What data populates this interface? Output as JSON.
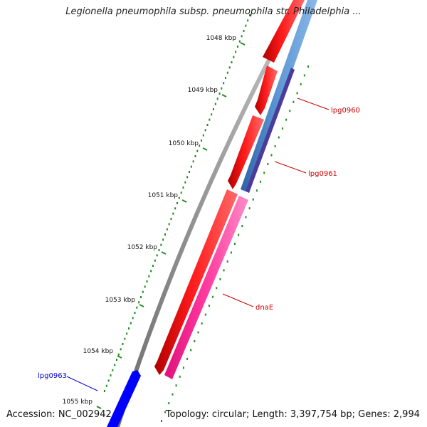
{
  "title": "Legionella pneumophila subsp. pneumophila str. Philadelphia ...",
  "accession": "Accession: NC_002942",
  "summary": "Topology: circular; Length: 3,397,754 bp; Genes: 2,994",
  "colors": {
    "backbone": "#888888",
    "forward_gene": "#ff0000",
    "reverse_gene": "#0000ff",
    "cds_blue": "#4f86c6",
    "cds_purple": "#4b3c9a",
    "cds_pink": "#ff2d96",
    "gc_ticks": "#228b22",
    "label_red": "#cc0000",
    "label_blue": "#0000cc"
  },
  "ruler": {
    "ticks": [
      {
        "label": "1048 kbp"
      },
      {
        "label": "1049 kbp"
      },
      {
        "label": "1050 kbp"
      },
      {
        "label": "1051 kbp"
      },
      {
        "label": "1052 kbp"
      },
      {
        "label": "1053 kbp"
      },
      {
        "label": "1054 kbp"
      },
      {
        "label": "1055 kbp"
      }
    ]
  },
  "genes": [
    {
      "name": "lpg0960",
      "color_key": "label_red"
    },
    {
      "name": "lpg0961",
      "color_key": "label_red"
    },
    {
      "name": "dnaE",
      "color_key": "label_red"
    },
    {
      "name": "lpg0963",
      "color_key": "label_blue"
    }
  ]
}
